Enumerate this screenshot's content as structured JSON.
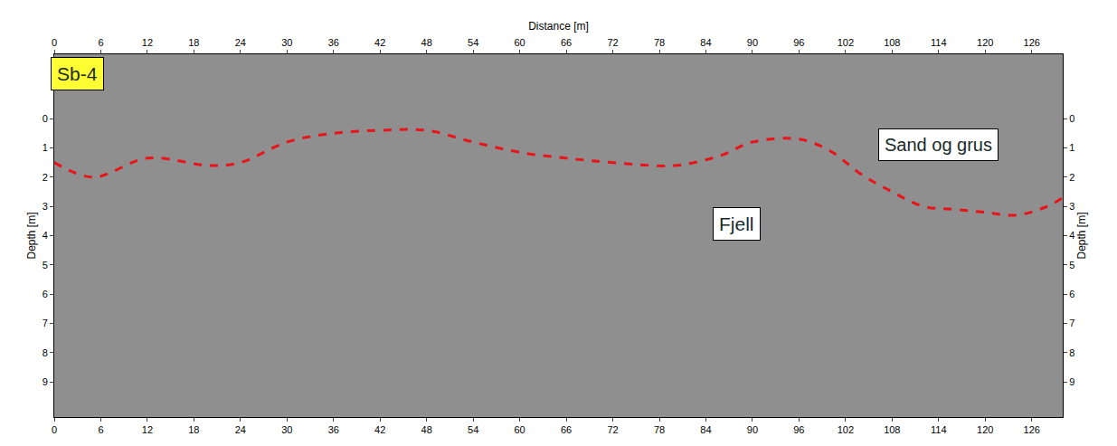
{
  "chart_data": {
    "type": "line",
    "xlabel": "Distance [m]",
    "ylabel": "Depth [m]",
    "x": [
      0,
      5,
      12,
      20,
      24,
      30,
      36,
      42,
      48,
      54,
      60,
      66,
      72,
      80,
      86,
      90,
      96,
      100,
      104,
      108,
      112,
      116,
      120,
      124,
      128,
      130
    ],
    "values": [
      1.5,
      2.0,
      1.35,
      1.6,
      1.5,
      0.8,
      0.5,
      0.4,
      0.4,
      0.8,
      1.15,
      1.35,
      1.5,
      1.6,
      1.25,
      0.8,
      0.7,
      1.1,
      1.9,
      2.5,
      3.0,
      3.1,
      3.2,
      3.3,
      3.0,
      2.7
    ],
    "color": "#e8141a",
    "line_style": "dash",
    "xlim": [
      0,
      130
    ],
    "xticks": [
      0,
      6,
      12,
      18,
      24,
      30,
      36,
      42,
      48,
      54,
      60,
      66,
      72,
      78,
      84,
      90,
      96,
      102,
      108,
      114,
      120,
      126
    ],
    "ylim": [
      10.2,
      -2.2
    ],
    "yticks": [
      0,
      1,
      2,
      3,
      4,
      5,
      6,
      7,
      8,
      9
    ],
    "grid": false,
    "annotations": [
      {
        "text": "Sb-4",
        "x": 3,
        "y": -1.55,
        "color": "#ffff33"
      },
      {
        "text": "Sand og grus",
        "x": 114,
        "y": 0.9,
        "color": "#ffffff"
      },
      {
        "text": "Fjell",
        "x": 88,
        "y": 3.6,
        "color": "#ffffff"
      }
    ]
  }
}
